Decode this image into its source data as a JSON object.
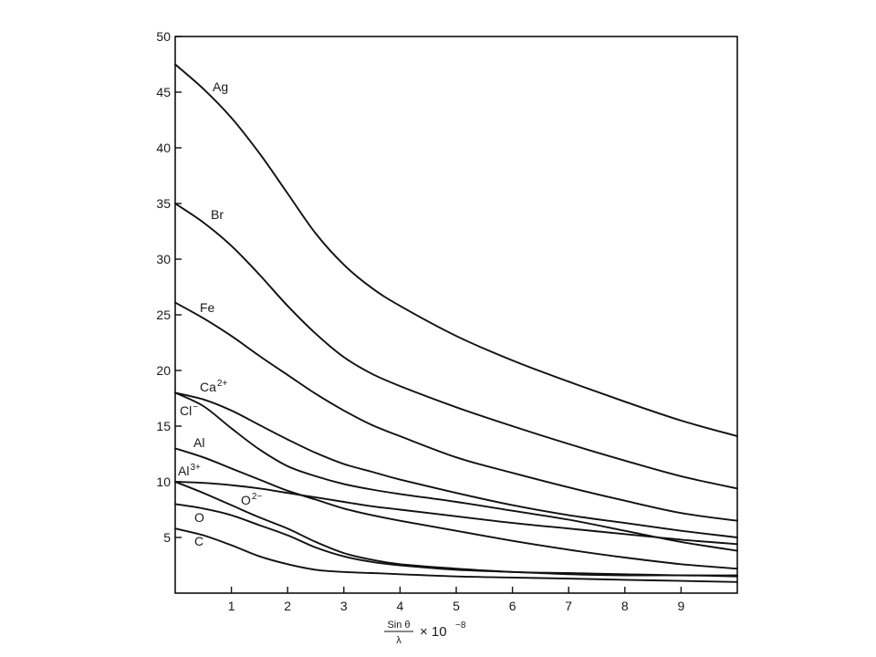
{
  "chart_data": {
    "type": "line",
    "xlabel": {
      "numerator": "Sin θ",
      "denominator": "λ",
      "factor": "× 10",
      "exponent": "−8"
    },
    "ylabel": "",
    "xlim": [
      0,
      10
    ],
    "ylim": [
      0,
      50
    ],
    "x_ticks": [
      1,
      2,
      3,
      4,
      5,
      6,
      7,
      8,
      9
    ],
    "y_ticks": [
      5,
      10,
      15,
      20,
      25,
      30,
      35,
      40,
      45,
      50
    ],
    "grid": false,
    "series": [
      {
        "name": "Ag",
        "label_base": "Ag",
        "label_sup": "",
        "x": [
          0,
          0.5,
          1,
          1.5,
          2,
          2.5,
          3,
          3.5,
          4,
          5,
          6,
          7,
          8,
          9,
          10
        ],
        "y": [
          47.5,
          45.3,
          42.7,
          39.5,
          35.9,
          32.3,
          29.5,
          27.4,
          25.8,
          23.1,
          20.9,
          19.0,
          17.2,
          15.5,
          14.1
        ]
      },
      {
        "name": "Br",
        "label_base": "Br",
        "label_sup": "",
        "x": [
          0,
          0.5,
          1,
          1.5,
          2,
          2.5,
          3,
          3.5,
          4,
          5,
          6,
          7,
          8,
          9,
          10
        ],
        "y": [
          35.0,
          33.3,
          31.2,
          28.6,
          25.8,
          23.3,
          21.2,
          19.7,
          18.6,
          16.7,
          15.0,
          13.4,
          11.9,
          10.5,
          9.4
        ]
      },
      {
        "name": "Fe",
        "label_base": "Fe",
        "label_sup": "",
        "x": [
          0,
          0.5,
          1,
          1.5,
          2,
          2.5,
          3,
          3.5,
          4,
          5,
          6,
          7,
          8,
          9,
          10
        ],
        "y": [
          26.1,
          24.7,
          23.1,
          21.3,
          19.6,
          17.9,
          16.4,
          15.1,
          14.1,
          12.2,
          10.8,
          9.5,
          8.3,
          7.2,
          6.5
        ]
      },
      {
        "name": "Ca2+",
        "label_base": "Ca",
        "label_sup": "2+",
        "x": [
          0,
          0.5,
          1,
          1.5,
          2,
          2.5,
          3,
          3.5,
          4,
          5,
          6,
          7,
          8,
          9,
          10
        ],
        "y": [
          18.0,
          17.4,
          16.4,
          15.1,
          13.8,
          12.6,
          11.6,
          10.9,
          10.2,
          9.0,
          7.9,
          7.0,
          6.3,
          5.6,
          5.0
        ]
      },
      {
        "name": "Cl−",
        "label_base": "Cl",
        "label_sup": "−",
        "x": [
          0,
          0.5,
          1,
          1.5,
          2,
          2.5,
          3,
          3.5,
          4,
          5,
          6,
          7,
          8,
          9,
          10
        ],
        "y": [
          18.0,
          16.8,
          14.8,
          12.9,
          11.4,
          10.5,
          9.8,
          9.3,
          8.9,
          8.2,
          7.4,
          6.6,
          5.6,
          4.6,
          3.8
        ]
      },
      {
        "name": "Al",
        "label_base": "Al",
        "label_sup": "",
        "x": [
          0,
          0.5,
          1,
          1.5,
          2,
          2.5,
          3,
          3.5,
          4,
          5,
          6,
          7,
          8,
          9,
          10
        ],
        "y": [
          13.0,
          12.2,
          11.2,
          10.2,
          9.2,
          8.4,
          7.6,
          7.0,
          6.5,
          5.6,
          4.7,
          3.9,
          3.2,
          2.6,
          2.2
        ]
      },
      {
        "name": "Al3+",
        "label_base": "Al",
        "label_sup": "3+",
        "x": [
          0,
          0.5,
          1,
          1.5,
          2,
          2.5,
          3,
          3.5,
          4,
          5,
          6,
          7,
          8,
          9,
          10
        ],
        "y": [
          10.0,
          9.9,
          9.7,
          9.4,
          9.0,
          8.6,
          8.2,
          7.8,
          7.5,
          6.9,
          6.3,
          5.8,
          5.3,
          4.8,
          4.4
        ]
      },
      {
        "name": "O2−",
        "label_base": "O",
        "label_sup": "2−",
        "x": [
          0,
          0.5,
          1,
          1.5,
          2,
          2.5,
          3,
          3.5,
          4,
          5,
          6,
          7,
          8,
          9,
          10
        ],
        "y": [
          10.0,
          9.0,
          7.9,
          6.8,
          5.8,
          4.6,
          3.6,
          3.0,
          2.6,
          2.2,
          1.9,
          1.8,
          1.7,
          1.6,
          1.6
        ]
      },
      {
        "name": "O",
        "label_base": "O",
        "label_sup": "",
        "x": [
          0,
          0.5,
          1,
          1.5,
          2,
          2.5,
          3,
          3.5,
          4,
          5,
          6,
          7,
          8,
          9,
          10
        ],
        "y": [
          8.0,
          7.6,
          7.0,
          6.1,
          5.2,
          4.1,
          3.3,
          2.8,
          2.5,
          2.1,
          1.9,
          1.7,
          1.6,
          1.6,
          1.5
        ]
      },
      {
        "name": "C",
        "label_base": "C",
        "label_sup": "",
        "x": [
          0,
          0.5,
          1,
          1.5,
          2,
          2.5,
          3,
          3.5,
          4,
          5,
          6,
          7,
          8,
          9,
          10
        ],
        "y": [
          5.8,
          5.2,
          4.3,
          3.3,
          2.6,
          2.1,
          1.9,
          1.8,
          1.7,
          1.5,
          1.4,
          1.3,
          1.2,
          1.1,
          1.0
        ]
      }
    ]
  }
}
